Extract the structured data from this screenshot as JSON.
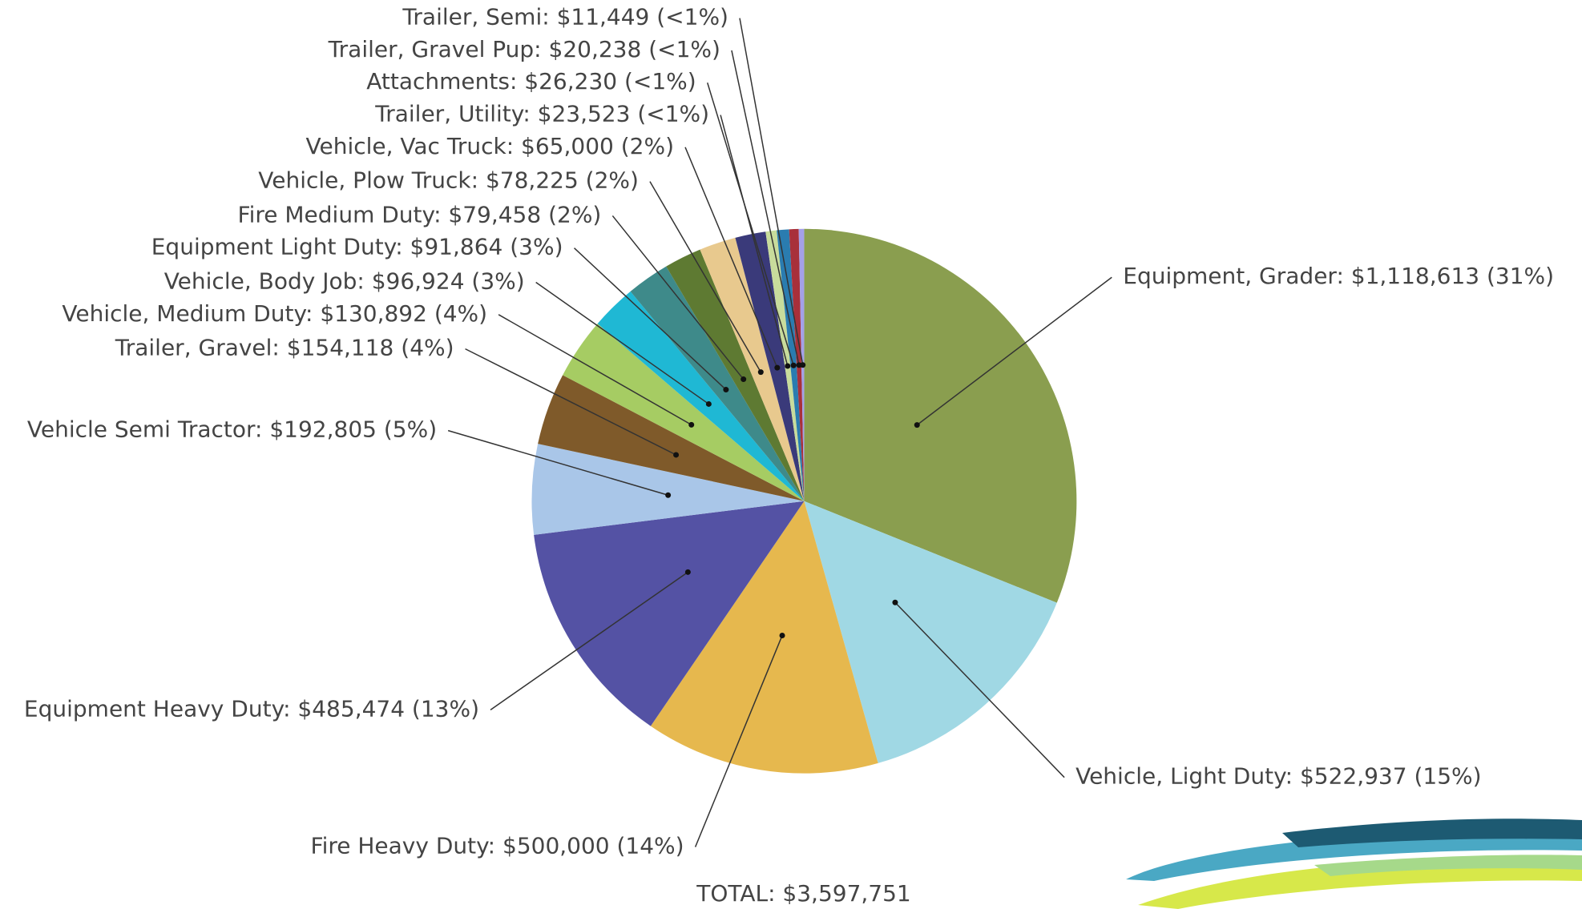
{
  "chart_data": {
    "type": "pie",
    "value_labels": [
      "Equipment, Grader: $1,118,613 (31%)",
      "Vehicle, Light Duty: $522,937 (15%)",
      "Fire Heavy Duty: $500,000 (14%)",
      "Equipment Heavy Duty: $485,474 (13%)",
      "Vehicle Semi Tractor: $192,805 (5%)",
      "Trailer, Gravel: $154,118 (4%)",
      "Vehicle, Medium Duty: $130,892 (4%)",
      "Vehicle, Body Job: $96,924 (3%)",
      "Equipment Light Duty: $91,864 (3%)",
      "Fire Medium Duty: $79,458 (2%)",
      "Vehicle, Plow Truck: $78,225 (2%)",
      "Vehicle, Vac Truck: $65,000 (2%)",
      "Trailer, Utility: $23,523 (<1%)",
      "Attachments: $26,230 (<1%)",
      "Trailer, Gravel Pup: $20,238 (<1%)",
      "Trailer, Semi: $11,449 (<1%)"
    ],
    "values": [
      1118613,
      522937,
      500000,
      485474,
      192805,
      154118,
      130892,
      96924,
      91864,
      79458,
      78225,
      65000,
      23523,
      26230,
      20238,
      11449
    ],
    "colors": [
      "#8a9e4f",
      "#a0d8e4",
      "#e6b84e",
      "#5452a4",
      "#a9c6e8",
      "#7f5a2a",
      "#a6cc63",
      "#1fb8d4",
      "#3e8a8a",
      "#5e7a32",
      "#e8c98e",
      "#3a3a7a",
      "#c8dc9c",
      "#2a7cb0",
      "#a8303a",
      "#a4a0e8"
    ],
    "total_label": "TOTAL: $3,597,751"
  }
}
